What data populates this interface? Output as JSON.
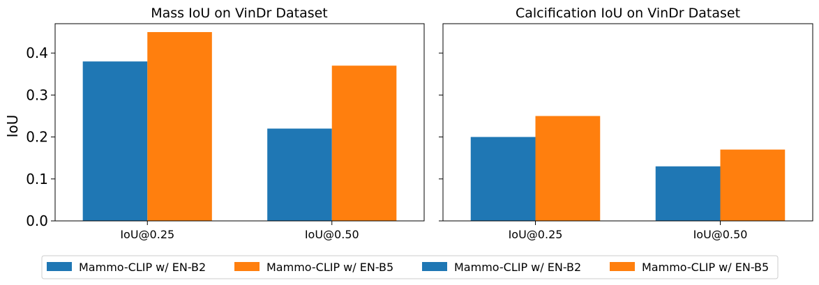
{
  "colors": {
    "b2": "#1f77b4",
    "b5": "#ff7f0e"
  },
  "chart_data": [
    {
      "type": "bar",
      "title": "Mass IoU on VinDr Dataset",
      "xlabel": "",
      "ylabel": "IoU",
      "ylim": [
        0,
        0.47
      ],
      "yticks": [
        "0.0",
        "0.1",
        "0.2",
        "0.3",
        "0.4"
      ],
      "categories": [
        "IoU@0.25",
        "IoU@0.50"
      ],
      "series": [
        {
          "name": "Mammo-CLIP w/ EN-B2",
          "color": "#1f77b4",
          "values": [
            0.38,
            0.22
          ]
        },
        {
          "name": "Mammo-CLIP w/ EN-B5",
          "color": "#ff7f0e",
          "values": [
            0.45,
            0.37
          ]
        }
      ],
      "grid": false
    },
    {
      "type": "bar",
      "title": "Calcification IoU on VinDr Dataset",
      "xlabel": "",
      "ylabel": "",
      "ylim": [
        0,
        0.47
      ],
      "categories": [
        "IoU@0.25",
        "IoU@0.50"
      ],
      "series": [
        {
          "name": "Mammo-CLIP w/ EN-B2",
          "color": "#1f77b4",
          "values": [
            0.2,
            0.13
          ]
        },
        {
          "name": "Mammo-CLIP w/ EN-B5",
          "color": "#ff7f0e",
          "values": [
            0.25,
            0.17
          ]
        }
      ],
      "grid": false
    }
  ],
  "legend": {
    "placement": "bottom-center",
    "entries": [
      {
        "label": "Mammo-CLIP w/ EN-B2",
        "color": "#1f77b4"
      },
      {
        "label": "Mammo-CLIP w/ EN-B5",
        "color": "#ff7f0e"
      },
      {
        "label": "Mammo-CLIP w/ EN-B2",
        "color": "#1f77b4"
      },
      {
        "label": "Mammo-CLIP w/ EN-B5",
        "color": "#ff7f0e"
      }
    ]
  }
}
